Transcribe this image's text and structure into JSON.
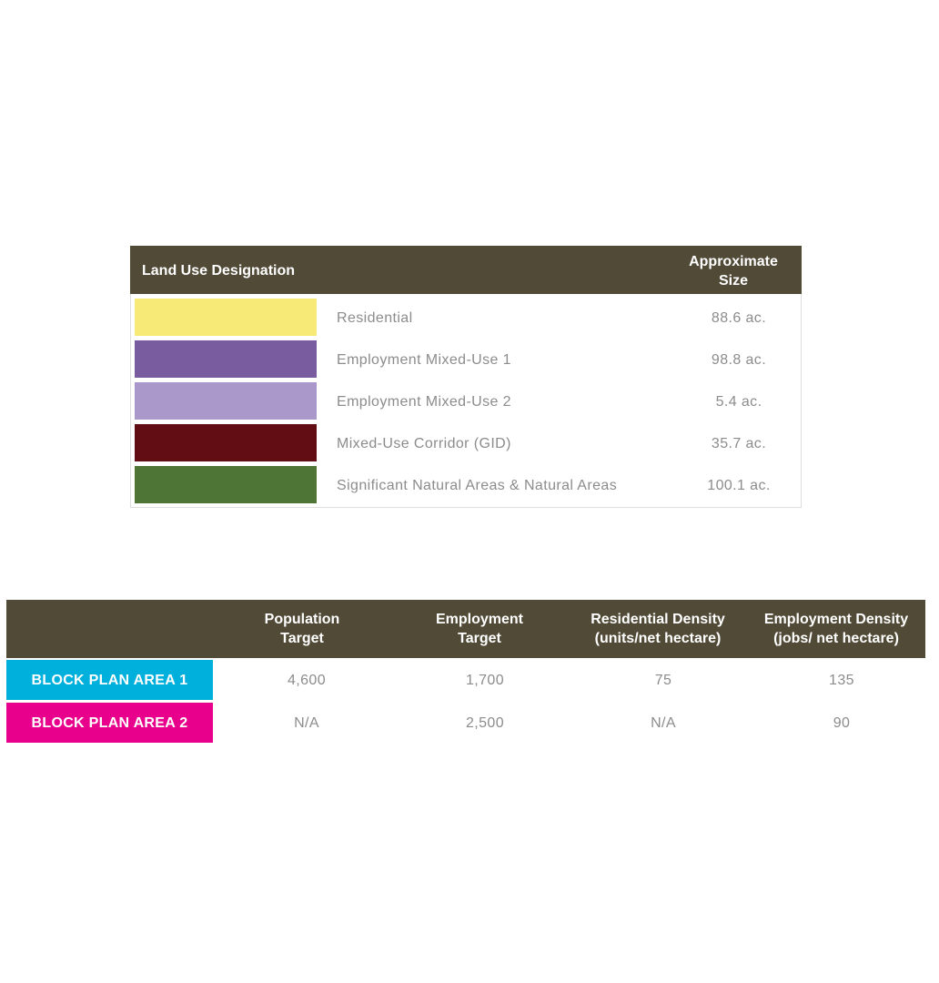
{
  "land_use_table": {
    "header": {
      "designation": "Land Use Designation",
      "size": "Approximate\nSize"
    },
    "rows": [
      {
        "color": "#f7ea77",
        "name": "Residential",
        "size": "88.6 ac."
      },
      {
        "color": "#785c9f",
        "name": "Employment Mixed-Use 1",
        "size": "98.8 ac."
      },
      {
        "color": "#ab98cb",
        "name": "Employment Mixed-Use 2",
        "size": "5.4 ac."
      },
      {
        "color": "#620c14",
        "name": "Mixed-Use Corridor (GID)",
        "size": "35.7 ac."
      },
      {
        "color": "#4f7536",
        "name": "Significant Natural Areas & Natural Areas",
        "size": "100.1 ac."
      }
    ]
  },
  "targets_table": {
    "headers": {
      "population": "Population\nTarget",
      "employment": "Employment\nTarget",
      "residential_density": "Residential Density\n(units/net hectare)",
      "employment_density": "Employment Density\n(jobs/ net hectare)"
    },
    "rows": [
      {
        "label": "BLOCK PLAN AREA 1",
        "color": "#00b0dc",
        "population": "4,600",
        "employment": "1,700",
        "residential_density": "75",
        "employment_density": "135"
      },
      {
        "label": "BLOCK PLAN AREA 2",
        "color": "#e8008d",
        "population": "N/A",
        "employment": "2,500",
        "residential_density": "N/A",
        "employment_density": "90"
      }
    ]
  },
  "colors": {
    "header_bg": "#514a37",
    "header_text": "#ffffff",
    "body_text": "#8c8c8c"
  }
}
